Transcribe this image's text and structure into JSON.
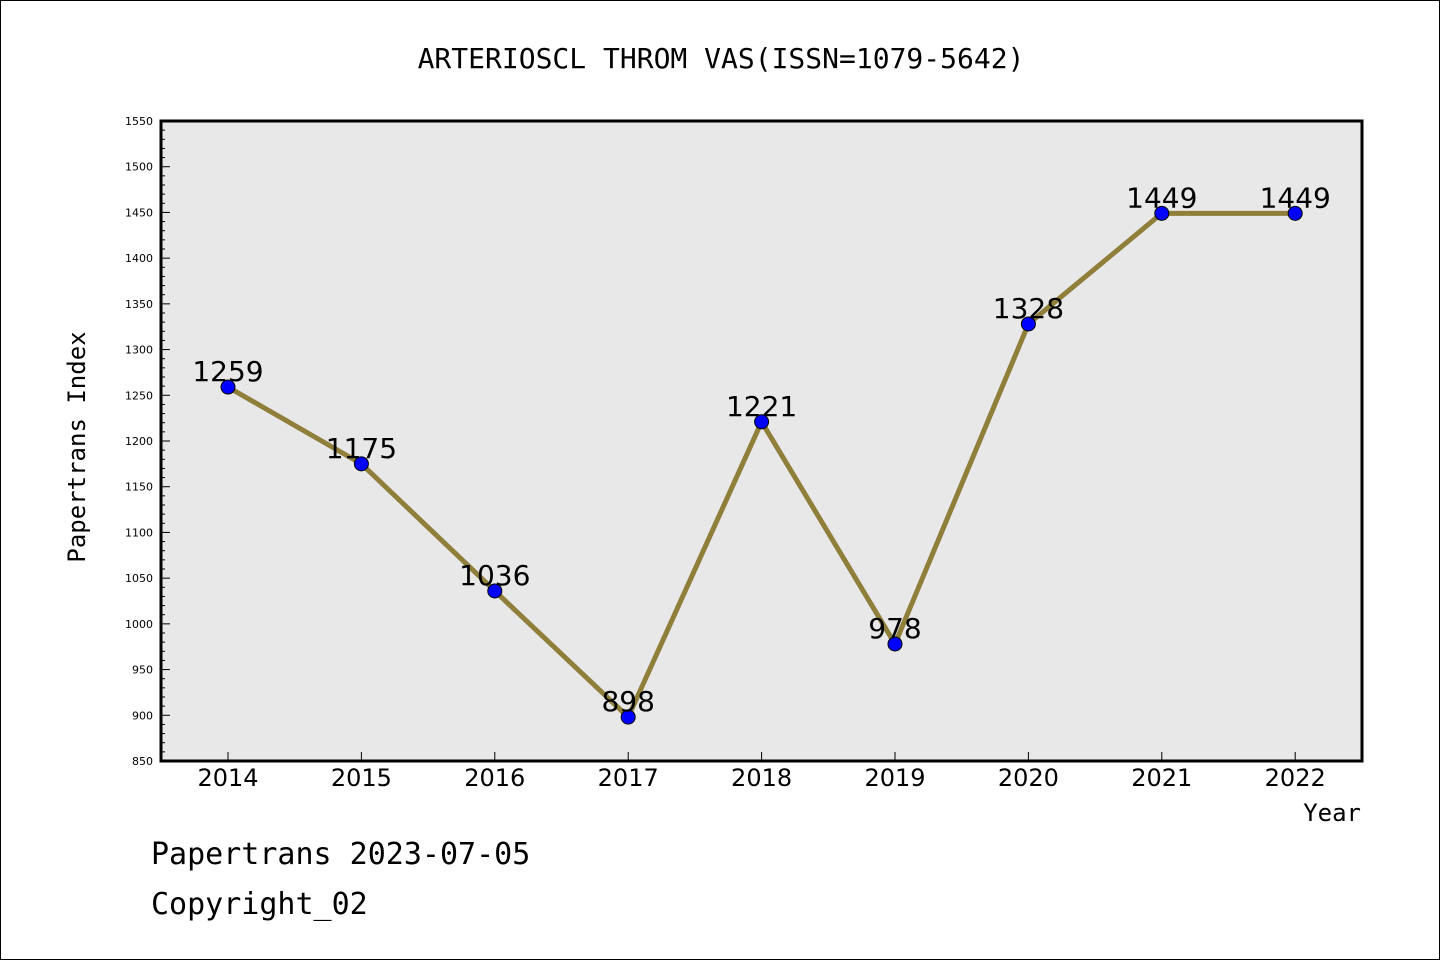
{
  "chart_data": {
    "type": "line",
    "title": "ARTERIOSCL THROM VAS(ISSN=1079-5642)",
    "xlabel": "Year",
    "ylabel": "Papertrans Index",
    "categories": [
      "2014",
      "2015",
      "2016",
      "2017",
      "2018",
      "2019",
      "2020",
      "2021",
      "2022"
    ],
    "series": [
      {
        "name": "Papertrans Index",
        "values": [
          1259,
          1175,
          1036,
          898,
          1221,
          978,
          1328,
          1449,
          1449
        ]
      }
    ],
    "data_labels": [
      "1259",
      "1175",
      "1036",
      "898",
      "1221",
      "978",
      "1328",
      "1449",
      "1449"
    ],
    "ylim": [
      850,
      1550
    ],
    "yticks": [
      "850",
      "900",
      "950",
      "1000",
      "1050",
      "1100",
      "1150",
      "1200",
      "1250",
      "1300",
      "1350",
      "1400",
      "1450",
      "1500",
      "1550"
    ],
    "grid": false,
    "legend": "none",
    "colors": {
      "line": "#8f7f3a",
      "marker": "#0000ff",
      "plot_bg": "#e8e8e8"
    }
  },
  "footer": {
    "line1": "Papertrans 2023-07-05",
    "line2": "Copyright_02"
  }
}
